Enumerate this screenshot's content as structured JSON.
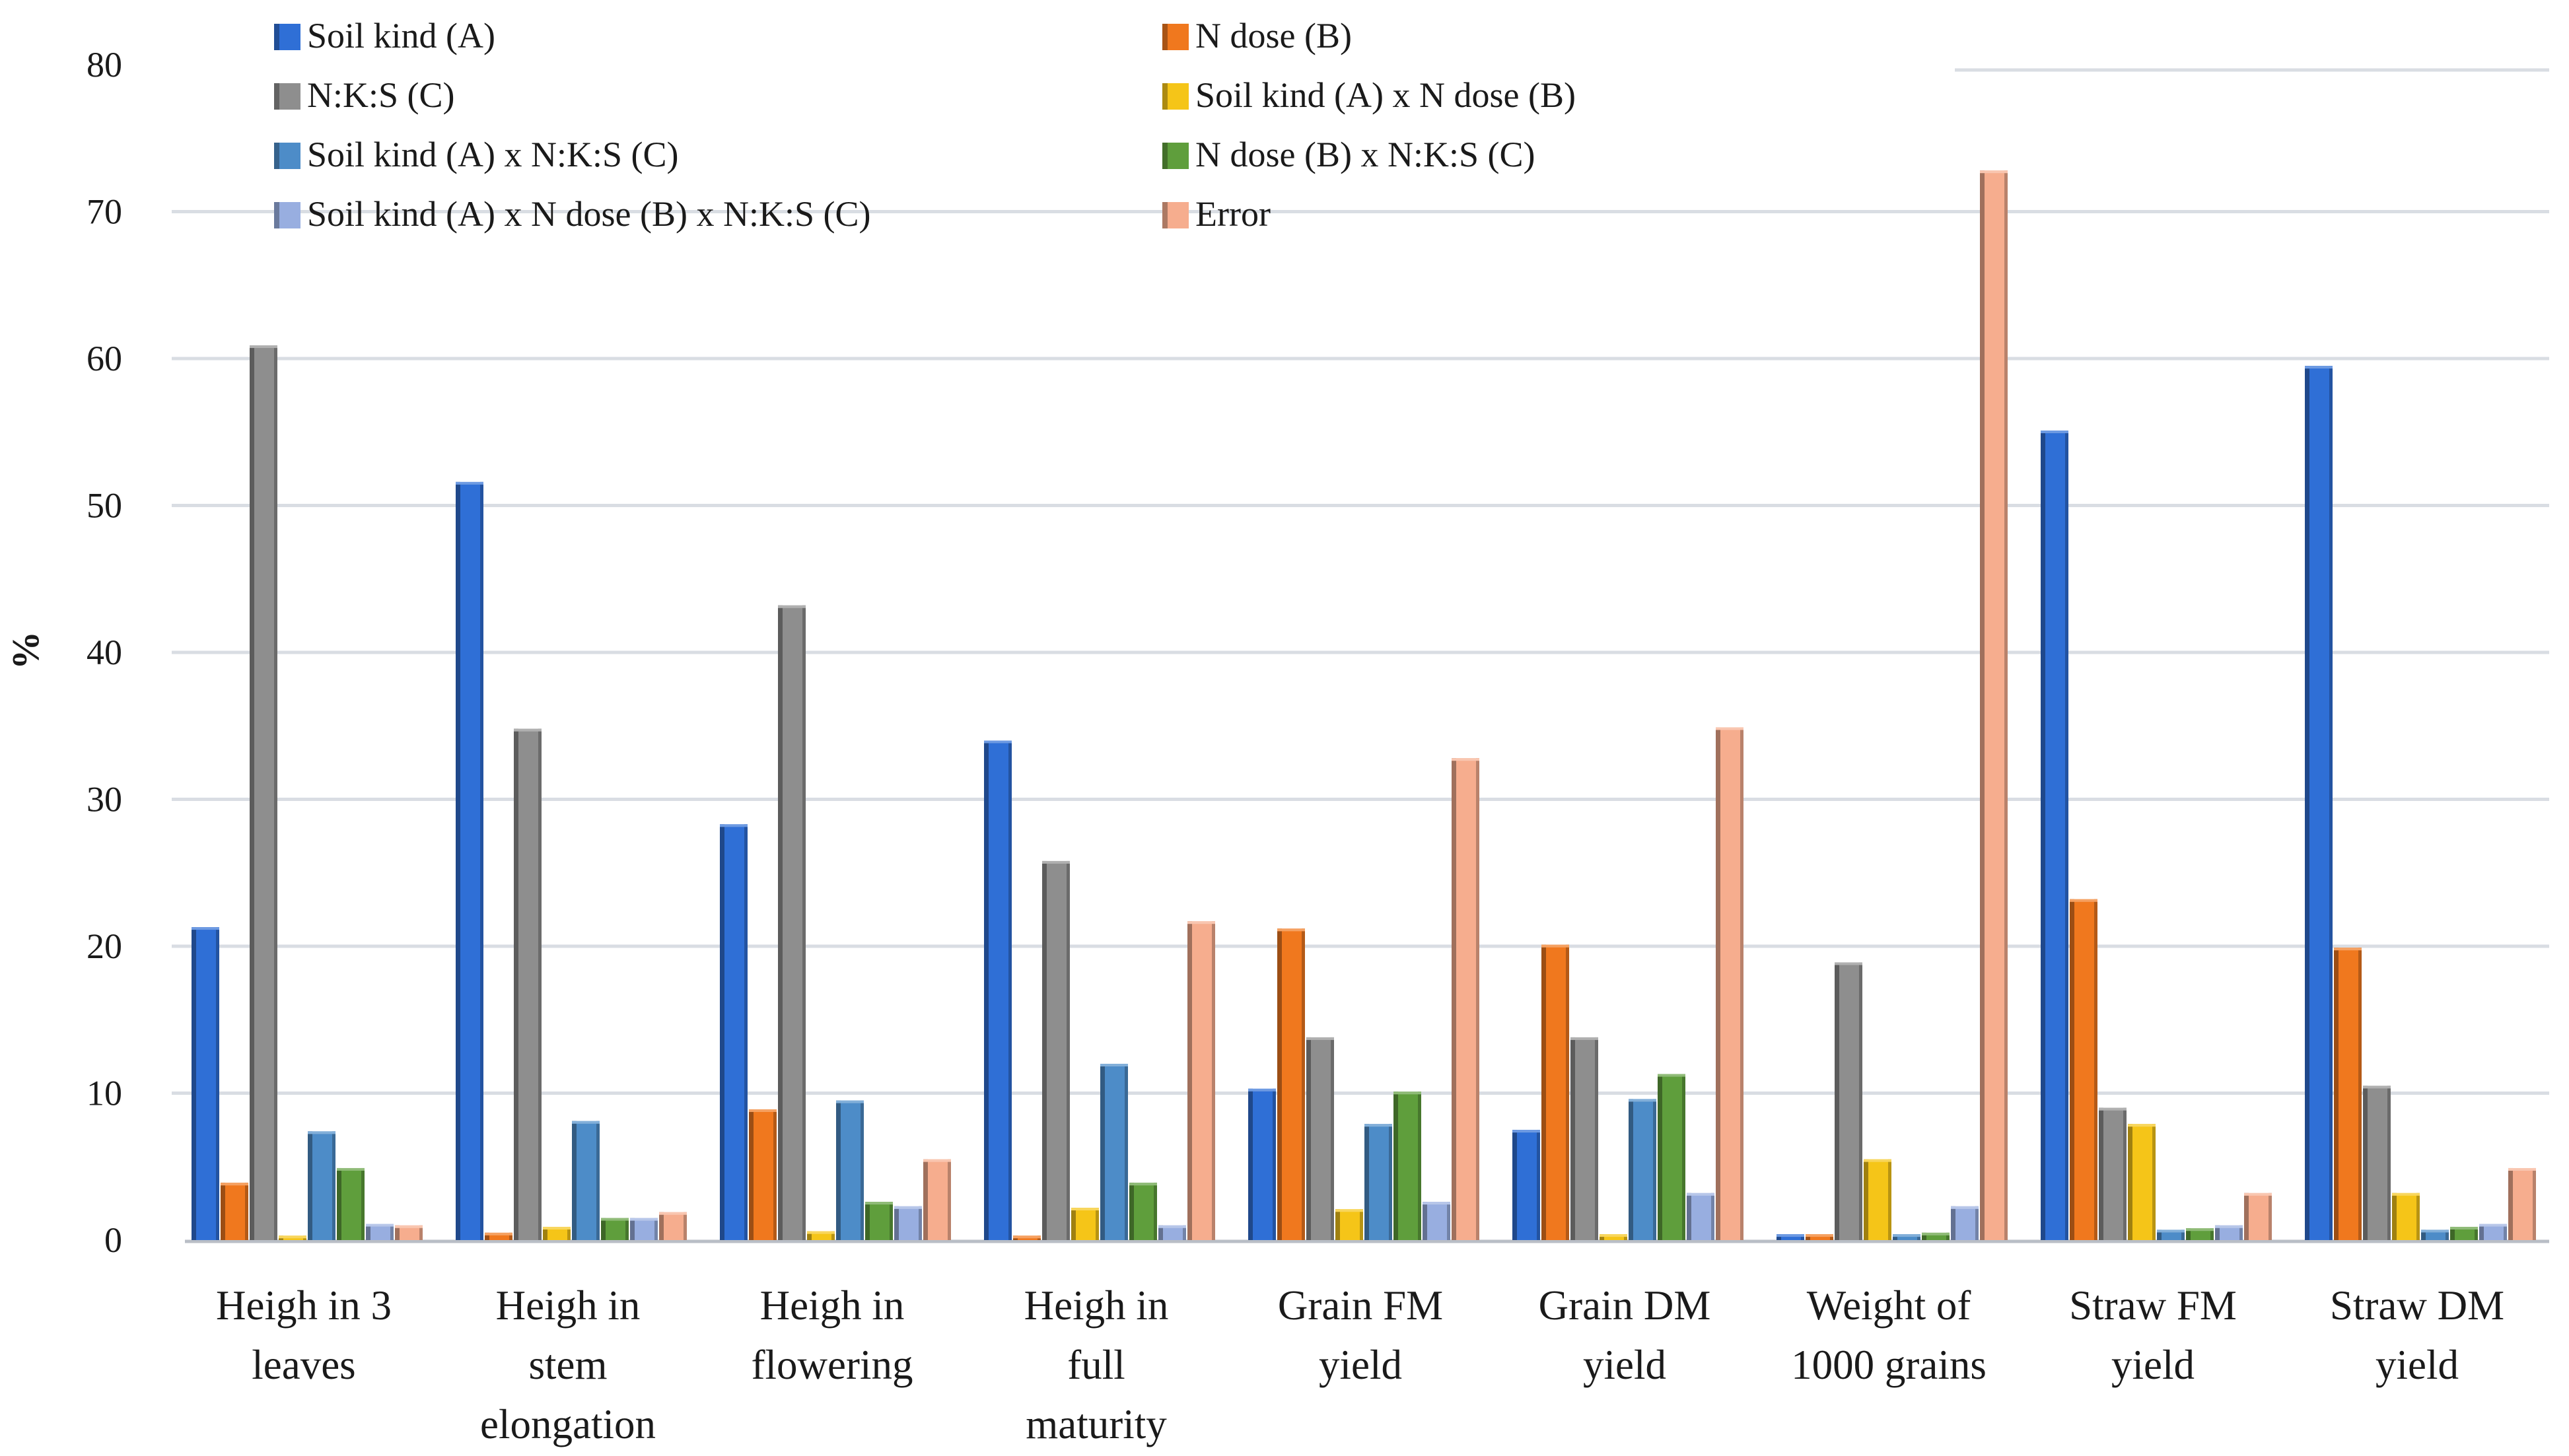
{
  "chart_data": {
    "type": "bar",
    "title": "",
    "ylabel": "%",
    "xlabel": "",
    "ylim": [
      0,
      80
    ],
    "yticks": [
      0,
      10,
      20,
      30,
      40,
      50,
      60,
      70,
      80
    ],
    "grid": true,
    "legend_position": "top",
    "categories": [
      [
        "Heigh in 3",
        "leaves"
      ],
      [
        "Heigh in",
        "stem",
        "elongation"
      ],
      [
        "Heigh in",
        "flowering"
      ],
      [
        "Heigh in",
        "full",
        "maturity"
      ],
      [
        "Grain FM",
        "yield"
      ],
      [
        "Grain DM",
        "yield"
      ],
      [
        "Weight of",
        "1000 grains"
      ],
      [
        "Straw FM",
        "yield"
      ],
      [
        "Straw DM",
        "yield"
      ]
    ],
    "series": [
      {
        "name": "Soil kind (A)",
        "color": "#2f6fd6",
        "values": [
          21.3,
          51.6,
          28.3,
          34.0,
          10.3,
          7.5,
          0.4,
          55.1,
          59.5
        ]
      },
      {
        "name": "N dose (B)",
        "color": "#f0781e",
        "values": [
          3.9,
          0.5,
          8.9,
          0.3,
          21.2,
          20.1,
          0.4,
          23.2,
          19.9
        ]
      },
      {
        "name": "N:K:S (C)",
        "color": "#8e8e8e",
        "values": [
          60.9,
          34.8,
          43.2,
          25.8,
          13.8,
          13.8,
          18.9,
          9.0,
          10.5
        ]
      },
      {
        "name": "Soil kind (A) x N dose (B)",
        "color": "#f5c518",
        "values": [
          0.3,
          0.9,
          0.6,
          2.2,
          2.1,
          0.4,
          5.5,
          7.9,
          3.2
        ]
      },
      {
        "name": "Soil kind (A) x N:K:S (C)",
        "color": "#4d8cc8",
        "values": [
          7.4,
          8.1,
          9.5,
          12.0,
          7.9,
          9.6,
          0.4,
          0.7,
          0.7
        ]
      },
      {
        "name": "N dose (B) x N:K:S (C)",
        "color": "#5f9e3c",
        "values": [
          4.9,
          1.5,
          2.6,
          3.9,
          10.1,
          11.3,
          0.5,
          0.8,
          0.9
        ]
      },
      {
        "name": "Soil kind (A) x N dose (B) x N:K:S (C)",
        "color": "#98aee0",
        "values": [
          1.1,
          1.5,
          2.3,
          1.0,
          2.6,
          3.2,
          2.3,
          1.0,
          1.1
        ]
      },
      {
        "name": "Error",
        "color": "#f6ad8e",
        "values": [
          1.0,
          1.9,
          5.5,
          21.7,
          32.8,
          34.9,
          72.8,
          3.2,
          4.9
        ]
      }
    ]
  }
}
